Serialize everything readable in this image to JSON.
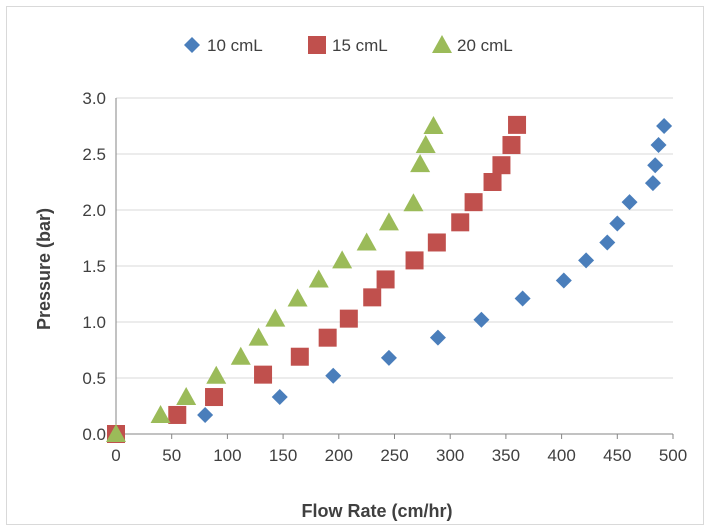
{
  "chart_data": {
    "type": "scatter",
    "title": "",
    "xlabel": "Flow Rate (cm/hr)",
    "ylabel": "Pressure (bar)",
    "xlim": [
      0,
      500
    ],
    "ylim": [
      0,
      3.0
    ],
    "xticks": [
      "0",
      "50",
      "100",
      "150",
      "200",
      "250",
      "300",
      "350",
      "400",
      "450",
      "500"
    ],
    "yticks": [
      "0.0",
      "0.5",
      "1.0",
      "1.5",
      "2.0",
      "2.5",
      "3.0"
    ],
    "grid": "horizontal",
    "legend_position": "top",
    "series": [
      {
        "name": "10 cmL",
        "marker": "diamond",
        "color": "#4a7ebb",
        "points": [
          [
            0,
            0.0
          ],
          [
            80,
            0.17
          ],
          [
            147,
            0.33
          ],
          [
            195,
            0.52
          ],
          [
            245,
            0.68
          ],
          [
            289,
            0.86
          ],
          [
            328,
            1.02
          ],
          [
            365,
            1.21
          ],
          [
            402,
            1.37
          ],
          [
            422,
            1.55
          ],
          [
            441,
            1.71
          ],
          [
            450,
            1.88
          ],
          [
            461,
            2.07
          ],
          [
            482,
            2.24
          ],
          [
            484,
            2.4
          ],
          [
            487,
            2.58
          ],
          [
            492,
            2.75
          ]
        ]
      },
      {
        "name": "15 cmL",
        "marker": "square",
        "color": "#c0504d",
        "points": [
          [
            0,
            0.0
          ],
          [
            55,
            0.17
          ],
          [
            88,
            0.33
          ],
          [
            132,
            0.53
          ],
          [
            165,
            0.69
          ],
          [
            190,
            0.86
          ],
          [
            209,
            1.03
          ],
          [
            230,
            1.22
          ],
          [
            242,
            1.38
          ],
          [
            268,
            1.55
          ],
          [
            288,
            1.71
          ],
          [
            309,
            1.89
          ],
          [
            321,
            2.07
          ],
          [
            338,
            2.25
          ],
          [
            346,
            2.4
          ],
          [
            355,
            2.58
          ],
          [
            360,
            2.76
          ]
        ]
      },
      {
        "name": "20 cmL",
        "marker": "triangle",
        "color": "#9bbb59",
        "points": [
          [
            0,
            0.0
          ],
          [
            40,
            0.17
          ],
          [
            63,
            0.33
          ],
          [
            90,
            0.52
          ],
          [
            112,
            0.69
          ],
          [
            128,
            0.86
          ],
          [
            143,
            1.03
          ],
          [
            163,
            1.21
          ],
          [
            182,
            1.38
          ],
          [
            203,
            1.55
          ],
          [
            225,
            1.71
          ],
          [
            245,
            1.89
          ],
          [
            267,
            2.06
          ],
          [
            273,
            2.41
          ],
          [
            278,
            2.58
          ],
          [
            285,
            2.75
          ]
        ]
      }
    ]
  }
}
